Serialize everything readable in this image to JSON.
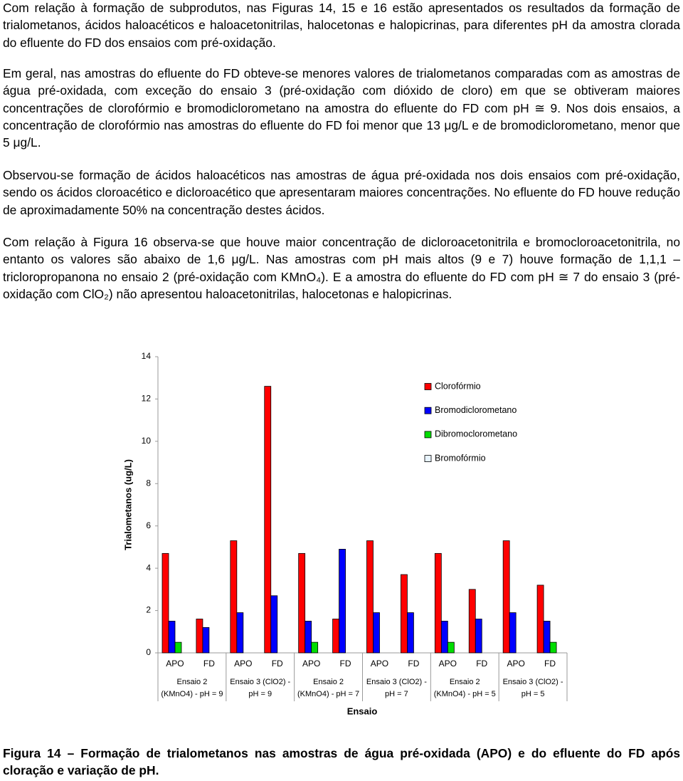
{
  "paragraphs": [
    "Com relação à formação de subprodutos, nas Figuras 14, 15 e 16 estão apresentados os resultados da formação de trialometanos, ácidos haloacéticos e haloacetonitrilas, halocetonas e halopicrinas, para diferentes pH da amostra clorada do efluente do FD dos ensaios com pré-oxidação.",
    "Em geral, nas amostras do efluente do FD obteve-se menores valores de trialometanos comparadas com as amostras de água pré-oxidada, com exceção do ensaio 3 (pré-oxidação com dióxido de cloro) em que se obtiveram maiores concentrações de clorofórmio e bromodiclorometano na amostra do efluente do FD com pH ≅ 9. Nos dois ensaios, a concentração de clorofórmio nas amostras do efluente do FD foi menor que 13 μg/L e de bromodiclorometano, menor que 5 μg/L.",
    "Observou-se formação de ácidos haloacéticos nas amostras de água pré-oxidada nos dois ensaios com pré-oxidação, sendo os ácidos cloroacético e dicloroacético que apresentaram maiores concentrações. No efluente do FD houve redução de aproximadamente 50% na concentração destes ácidos.",
    "Com relação à Figura 16 observa-se que houve maior concentração de dicloroacetonitrila e bromocloroacetonitrila, no entanto os valores são abaixo de 1,6 μg/L. Nas amostras com pH mais altos (9 e 7) houve formação de 1,1,1 – tricloropropanona no ensaio 2 (pré-oxidação com KMnO₄). E a amostra do efluente do FD com pH ≅ 7 do ensaio 3 (pré-oxidação com ClO₂) não apresentou haloacetonitrilas, halocetonas e halopicrinas."
  ],
  "chart_data": {
    "type": "bar",
    "y_label": "Trialometanos (ug/L)",
    "x_label": "Ensaio",
    "categories": [
      "APO",
      "FD",
      "APO",
      "FD",
      "APO",
      "FD",
      "APO",
      "FD",
      "APO",
      "FD",
      "APO",
      "FD"
    ],
    "groups": [
      [
        "Ensaio 2",
        "(KMnO4) - pH = 9"
      ],
      [
        "Ensaio 3 (ClO2) -",
        "pH = 9"
      ],
      [
        "Ensaio 2",
        "(KMnO4) - pH = 7"
      ],
      [
        "Ensaio 3 (ClO2) -",
        "pH = 7"
      ],
      [
        "Ensaio 2",
        "(KMnO4) - pH = 5"
      ],
      [
        "Ensaio 3 (ClO2) -",
        "pH = 5"
      ]
    ],
    "series": [
      {
        "name": "Clorofórmio",
        "color": "#ff0000",
        "values": [
          4.7,
          1.6,
          5.3,
          12.6,
          4.7,
          1.6,
          5.3,
          3.7,
          4.7,
          3.0,
          5.3,
          3.2
        ]
      },
      {
        "name": "Bromodiclorometano",
        "color": "#0000ff",
        "values": [
          1.5,
          1.2,
          1.9,
          2.7,
          1.5,
          4.9,
          1.9,
          1.9,
          1.5,
          1.6,
          1.9,
          1.5
        ]
      },
      {
        "name": "Dibromoclorometano",
        "color": "#00dd00",
        "values": [
          0.5,
          0,
          0,
          0,
          0.5,
          0,
          0,
          0,
          0.5,
          0,
          0,
          0.5
        ]
      },
      {
        "name": "Bromofórmio",
        "color": "#e8f4ff",
        "values": [
          0,
          0,
          0,
          0,
          0,
          0,
          0,
          0,
          0,
          0,
          0,
          0
        ]
      }
    ],
    "ylim": [
      0,
      14
    ],
    "yticks": [
      0,
      2,
      4,
      6,
      8,
      10,
      12,
      14
    ],
    "legend": "upper right"
  },
  "caption": "Figura 14 – Formação de trialometanos nas amostras de água pré-oxidada (APO) e do efluente do FD após cloração e variação de pH."
}
